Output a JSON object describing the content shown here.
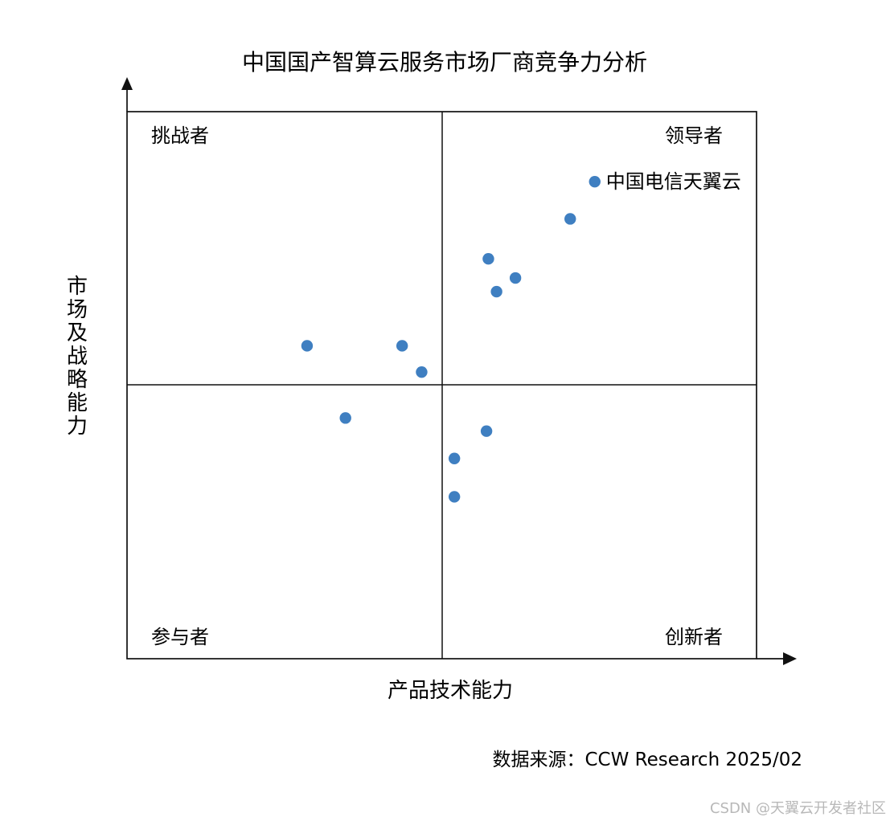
{
  "watermark": "CSDN @天翼云开发者社区",
  "source": "数据来源：CCW Research 2025/02",
  "chart_data": {
    "type": "scatter",
    "title": "中国国产智算云服务市场厂商竞争力分析",
    "xlabel": "产品技术能力",
    "ylabel": "市场及战略能力",
    "xlim": [
      0,
      100
    ],
    "ylim": [
      0,
      100
    ],
    "quadrants": {
      "top_left": "挑战者",
      "top_right": "领导者",
      "bottom_left": "参与者",
      "bottom_right": "创新者"
    },
    "points": [
      {
        "x": 74.3,
        "y": 87.2,
        "label": "中国电信天翼云"
      },
      {
        "x": 70.4,
        "y": 80.4,
        "label": ""
      },
      {
        "x": 57.4,
        "y": 73.1,
        "label": ""
      },
      {
        "x": 61.7,
        "y": 69.6,
        "label": ""
      },
      {
        "x": 58.7,
        "y": 67.1,
        "label": ""
      },
      {
        "x": 28.6,
        "y": 57.2,
        "label": ""
      },
      {
        "x": 43.7,
        "y": 57.2,
        "label": ""
      },
      {
        "x": 46.8,
        "y": 52.4,
        "label": ""
      },
      {
        "x": 34.7,
        "y": 44.0,
        "label": ""
      },
      {
        "x": 57.1,
        "y": 41.6,
        "label": ""
      },
      {
        "x": 52.0,
        "y": 36.6,
        "label": ""
      },
      {
        "x": 52.0,
        "y": 29.6,
        "label": ""
      }
    ],
    "point_color": "#3f7fc1",
    "grid": false,
    "legend": "none"
  }
}
